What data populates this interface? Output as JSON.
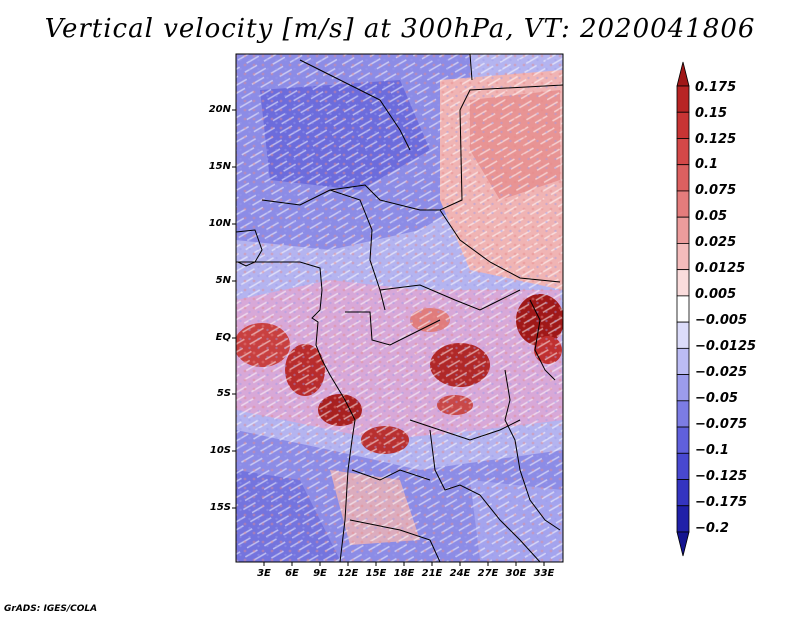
{
  "title": "Vertical velocity [m/s] at 300hPa, VT: 2020041806",
  "footer": "GrADS: IGES/COLA",
  "map": {
    "lat_labels": [
      "20N",
      "15N",
      "10N",
      "5N",
      "EQ",
      "5S",
      "10S",
      "15S"
    ],
    "lon_labels": [
      "3E",
      "6E",
      "9E",
      "12E",
      "15E",
      "18E",
      "21E",
      "24E",
      "27E",
      "30E",
      "33E"
    ]
  },
  "colorbar": {
    "levels": [
      "0.175",
      "0.15",
      "0.125",
      "0.1",
      "0.075",
      "0.05",
      "0.025",
      "0.0125",
      "0.005",
      "−0.005",
      "−0.0125",
      "−0.025",
      "−0.05",
      "−0.075",
      "−0.1",
      "−0.125",
      "−0.175",
      "−0.2"
    ],
    "colors": [
      "#a01818",
      "#b82424",
      "#c83434",
      "#d44848",
      "#dc6060",
      "#e47c7c",
      "#ec9c9c",
      "#f4bcbc",
      "#fadcdc",
      "#ffffff",
      "#dcdcfa",
      "#bcbcf4",
      "#9c9cec",
      "#7c7ce4",
      "#6060dc",
      "#4848d0",
      "#3434c0",
      "#2020a8",
      "#141490"
    ]
  }
}
